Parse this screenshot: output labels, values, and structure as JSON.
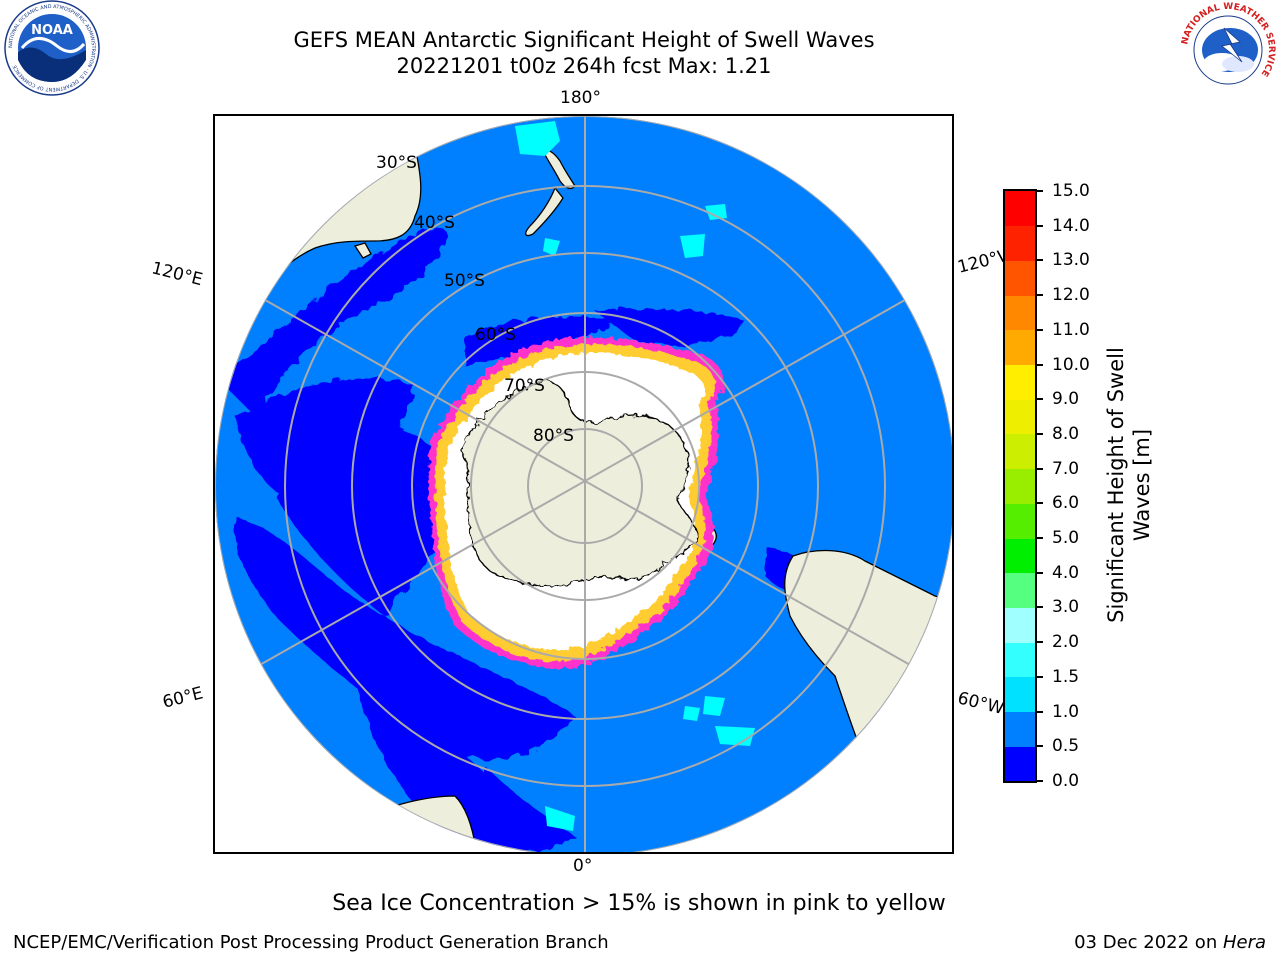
{
  "header": {
    "title_line1": "GEFS MEAN Antarctic Significant Height of Swell Waves",
    "title_line2": "20221201 t00z 264h fcst   Max: 1.21"
  },
  "logos": {
    "noaa": {
      "text": "NOAA",
      "ring_text": "NATIONAL OCEANIC AND ATMOSPHERIC ADMINISTRATION · U.S. DEPARTMENT OF COMMERCE",
      "icon": "noaa-logo-icon"
    },
    "nws": {
      "ring_text": "NATIONAL WEATHER SERVICE",
      "icon": "nws-logo-icon"
    }
  },
  "map": {
    "projection": "south-polar-stereographic",
    "longitude_labels": {
      "top": "180°",
      "bottom": "0°",
      "upper_left": "120°E",
      "upper_right": "120°W",
      "lower_left": "60°E",
      "lower_right": "60°W"
    },
    "latitude_labels": [
      "30°S",
      "40°S",
      "50°S",
      "60°S",
      "70°S",
      "80°S"
    ],
    "colors": {
      "ocean_low": "#0080FF",
      "ocean_lowest": "#0000FF",
      "land": "#EEEEDD",
      "sea_ice": "#FFFFFF",
      "ice_edge_pink": "#FF33CC",
      "ice_edge_yellow": "#FFCC33",
      "cyan_patch": "#00FFFF",
      "gridline": "#AAAAAA"
    }
  },
  "colorbar": {
    "title": "Significant Height of Swell Waves [m]",
    "title_line1": "Significant Height of Swell",
    "title_line2": "Waves [m]",
    "tick_labels": [
      "0.0",
      "0.5",
      "1.0",
      "1.5",
      "2.0",
      "3.0",
      "4.0",
      "5.0",
      "6.0",
      "7.0",
      "8.0",
      "9.0",
      "10.0",
      "11.0",
      "12.0",
      "13.0",
      "14.0",
      "15.0"
    ],
    "colors": [
      "#0000FF",
      "#0080FF",
      "#00E0FF",
      "#33FFFF",
      "#66FFFF",
      "#A0FFFF",
      "#55FF80",
      "#00EE00",
      "#55EE00",
      "#99EE00",
      "#CCEE00",
      "#EEEE00",
      "#FFEE00",
      "#FFCC00",
      "#FFAA00",
      "#FF8800",
      "#FF5500",
      "#FF2200",
      "#FF0000"
    ]
  },
  "caption": "Sea Ice Concentration > 15% is shown in pink to yellow",
  "footer": {
    "left": "NCEP/EMC/Verification Post Processing Product Generation Branch",
    "right_prefix": "03 Dec 2022 on ",
    "right_host": "Hera"
  }
}
